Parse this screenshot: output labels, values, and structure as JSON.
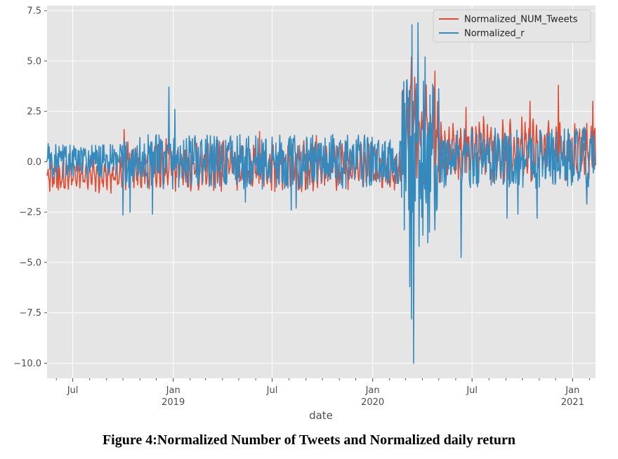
{
  "figure": {
    "caption": "Figure 4:Normalized Number of Tweets and Normalized daily return"
  },
  "chart_data": {
    "type": "line",
    "xlabel": "date",
    "ylabel": "",
    "title": "",
    "xlim": [
      "2018-05-15",
      "2021-02-12"
    ],
    "ylim": [
      -10.75,
      7.75
    ],
    "grid": true,
    "legend_position": "top-right",
    "yticks": [
      7.5,
      5.0,
      2.5,
      0.0,
      -2.5,
      -5.0,
      -7.5,
      -10.0
    ],
    "ytick_labels": [
      "7.5",
      "5.0",
      "2.5",
      "0.0",
      "−2.5",
      "−5.0",
      "−7.5",
      "−10.0"
    ],
    "xticks_major": [
      {
        "date": "2018-07-01",
        "label": "Jul",
        "year_label": ""
      },
      {
        "date": "2019-01-01",
        "label": "Jan",
        "year_label": "2019"
      },
      {
        "date": "2019-07-01",
        "label": "Jul",
        "year_label": ""
      },
      {
        "date": "2020-01-01",
        "label": "Jan",
        "year_label": "2020"
      },
      {
        "date": "2020-07-01",
        "label": "Jul",
        "year_label": ""
      },
      {
        "date": "2021-01-01",
        "label": "Jan",
        "year_label": "2021"
      }
    ],
    "series": [
      {
        "name": "Normalized_NUM_Tweets",
        "color": "#E24A33",
        "segments": [
          {
            "start": "2018-05-15",
            "end": "2018-10-01",
            "mean": -0.7,
            "amp": 0.55,
            "noise": 0.25
          },
          {
            "start": "2018-10-01",
            "end": "2018-12-31",
            "mean": -0.2,
            "amp": 0.8,
            "noise": 0.35
          },
          {
            "start": "2019-01-01",
            "end": "2019-12-31",
            "mean": -0.25,
            "amp": 0.75,
            "noise": 0.35
          },
          {
            "start": "2020-01-01",
            "end": "2020-02-20",
            "mean": -0.4,
            "amp": 0.6,
            "noise": 0.3
          },
          {
            "start": "2020-02-20",
            "end": "2020-04-30",
            "mean": 1.3,
            "amp": 1.4,
            "noise": 0.9
          },
          {
            "start": "2020-05-01",
            "end": "2021-02-12",
            "mean": 0.6,
            "amp": 0.95,
            "noise": 0.45
          }
        ],
        "spikes": [
          {
            "date": "2018-10-03",
            "value": 1.6
          },
          {
            "date": "2019-06-08",
            "value": 1.5
          },
          {
            "date": "2019-09-20",
            "value": 1.3
          },
          {
            "date": "2020-03-12",
            "value": 5.2
          },
          {
            "date": "2020-03-18",
            "value": 4.2
          },
          {
            "date": "2020-04-24",
            "value": 4.5
          },
          {
            "date": "2020-06-20",
            "value": 2.7
          },
          {
            "date": "2020-10-15",
            "value": 3.0
          },
          {
            "date": "2020-12-06",
            "value": 3.8
          },
          {
            "date": "2021-02-07",
            "value": 3.0
          },
          {
            "date": "2020-02-10",
            "value": -1.4
          },
          {
            "date": "2018-06-05",
            "value": -1.4
          }
        ]
      },
      {
        "name": "Normalized_r",
        "color": "#348ABD",
        "segments": [
          {
            "start": "2018-05-15",
            "end": "2018-10-01",
            "mean": 0.0,
            "amp": 0.0,
            "noise": 0.55
          },
          {
            "start": "2018-10-01",
            "end": "2019-12-31",
            "mean": 0.0,
            "amp": 0.0,
            "noise": 0.85
          },
          {
            "start": "2020-01-01",
            "end": "2020-02-20",
            "mean": 0.0,
            "amp": 0.0,
            "noise": 0.7
          },
          {
            "start": "2020-02-20",
            "end": "2020-04-30",
            "mean": 0.0,
            "amp": 0.0,
            "noise": 2.6
          },
          {
            "start": "2020-05-01",
            "end": "2021-02-12",
            "mean": 0.2,
            "amp": 0.0,
            "noise": 0.95
          }
        ],
        "spikes": [
          {
            "date": "2018-05-17",
            "value": 0.9
          },
          {
            "date": "2018-10-01",
            "value": -2.65
          },
          {
            "date": "2018-10-14",
            "value": -2.5
          },
          {
            "date": "2018-11-24",
            "value": -2.6
          },
          {
            "date": "2018-12-24",
            "value": 3.7
          },
          {
            "date": "2019-01-04",
            "value": 2.6
          },
          {
            "date": "2019-05-13",
            "value": -2.0
          },
          {
            "date": "2019-08-05",
            "value": -2.4
          },
          {
            "date": "2019-08-14",
            "value": -2.3
          },
          {
            "date": "2020-03-09",
            "value": -6.2
          },
          {
            "date": "2020-03-12",
            "value": -7.8
          },
          {
            "date": "2020-03-16",
            "value": -10.0
          },
          {
            "date": "2020-03-13",
            "value": 6.8
          },
          {
            "date": "2020-03-24",
            "value": 6.9
          },
          {
            "date": "2020-03-26",
            "value": -4.2
          },
          {
            "date": "2020-04-06",
            "value": 5.2
          },
          {
            "date": "2020-04-14",
            "value": -3.5
          },
          {
            "date": "2020-06-11",
            "value": -4.75
          },
          {
            "date": "2020-09-03",
            "value": -2.8
          },
          {
            "date": "2020-09-23",
            "value": -2.6
          },
          {
            "date": "2020-10-28",
            "value": -2.8
          },
          {
            "date": "2021-01-27",
            "value": -2.1
          }
        ]
      }
    ]
  }
}
